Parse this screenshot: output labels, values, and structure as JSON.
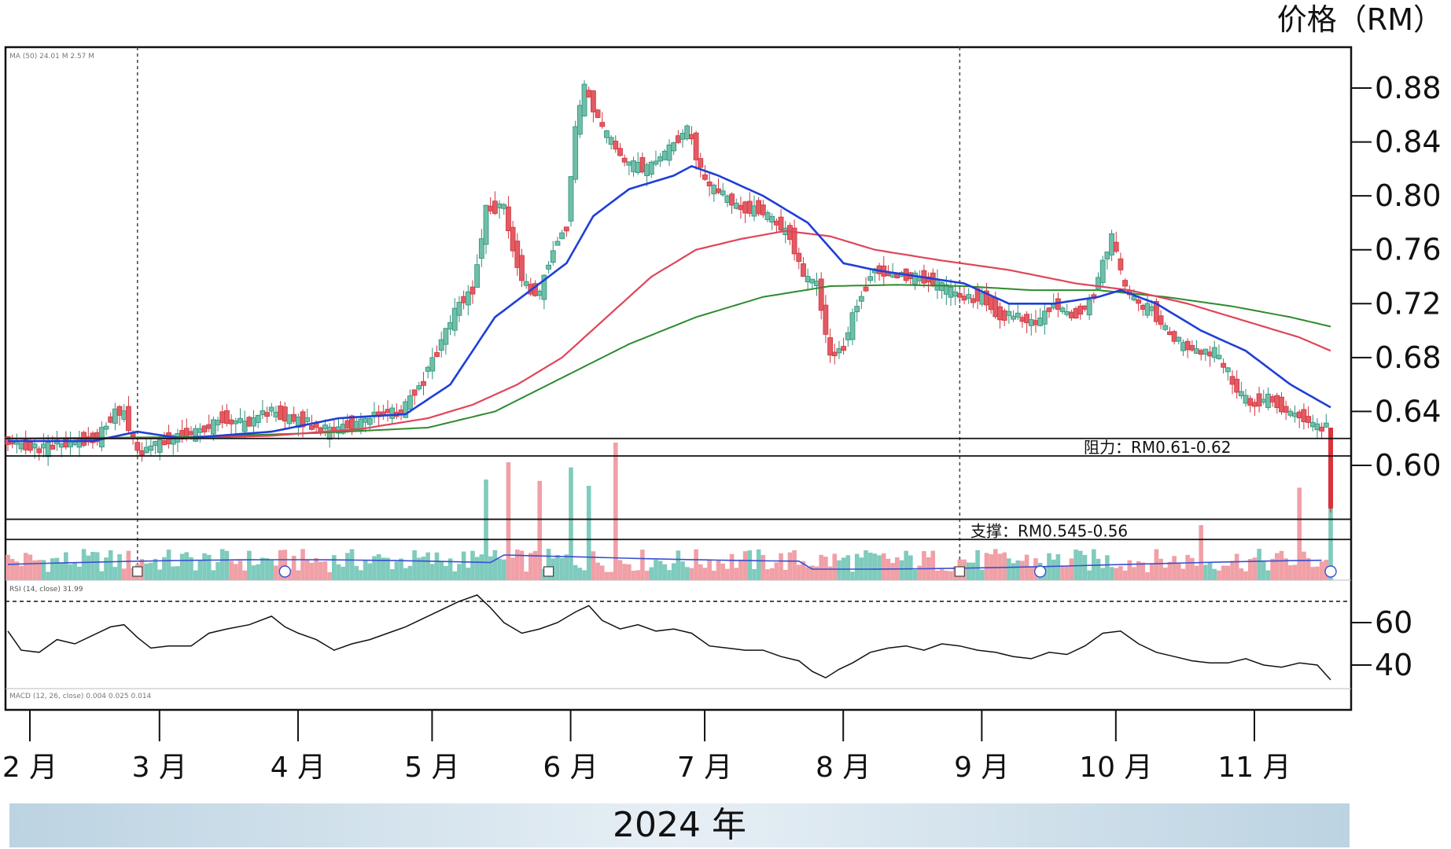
{
  "unit_label": "价格（RM）",
  "chart_data": {
    "type": "candlestick",
    "ylim": [
      0.53,
      0.91
    ],
    "y_ticks": [
      {
        "value": 0.88,
        "label": "0.88"
      },
      {
        "value": 0.84,
        "label": "0.84"
      },
      {
        "value": 0.8,
        "label": "0.80"
      },
      {
        "value": 0.76,
        "label": "0.76"
      },
      {
        "value": 0.72,
        "label": "0.72"
      },
      {
        "value": 0.68,
        "label": "0.68"
      },
      {
        "value": 0.64,
        "label": "0.64"
      },
      {
        "value": 0.6,
        "label": "0.60"
      }
    ],
    "rsi_ticks": [
      {
        "value": 60,
        "label": "60"
      },
      {
        "value": 40,
        "label": "40"
      }
    ],
    "months": [
      {
        "label": "2 月",
        "day": 1
      },
      {
        "label": "3 月",
        "day": 30
      },
      {
        "label": "4 月",
        "day": 61
      },
      {
        "label": "5 月",
        "day": 91
      },
      {
        "label": "6 月",
        "day": 122
      },
      {
        "label": "7 月",
        "day": 152
      },
      {
        "label": "8 月",
        "day": 183
      },
      {
        "label": "9 月",
        "day": 214
      },
      {
        "label": "10 月",
        "day": 244
      },
      {
        "label": "11 月",
        "day": 275
      }
    ],
    "year_label": "2024 年",
    "resistance": {
      "label": "阻力：RM0.61-0.62",
      "low": 0.607,
      "high": 0.62
    },
    "support": {
      "label": "支撑：RM0.545-0.56",
      "low": 0.545,
      "high": 0.56
    },
    "ma_legend": "MA (50)  24.01 M  2.57 M",
    "rsi_legend": "RSI (14, close)  31.99",
    "macd_legend": "MACD (12, 26, close)  0.004  0.025  0.014",
    "rsi_overbought": 70,
    "price_keypoints": [
      [
        1,
        0.618
      ],
      [
        8,
        0.612
      ],
      [
        15,
        0.616
      ],
      [
        22,
        0.62
      ],
      [
        26,
        0.64
      ],
      [
        28,
        0.638
      ],
      [
        31,
        0.61
      ],
      [
        35,
        0.615
      ],
      [
        40,
        0.622
      ],
      [
        45,
        0.625
      ],
      [
        50,
        0.635
      ],
      [
        55,
        0.63
      ],
      [
        60,
        0.64
      ],
      [
        65,
        0.635
      ],
      [
        70,
        0.63
      ],
      [
        74,
        0.625
      ],
      [
        78,
        0.63
      ],
      [
        82,
        0.632
      ],
      [
        86,
        0.64
      ],
      [
        90,
        0.64
      ],
      [
        92,
        0.65
      ],
      [
        95,
        0.665
      ],
      [
        100,
        0.7
      ],
      [
        103,
        0.72
      ],
      [
        106,
        0.73
      ],
      [
        109,
        0.79
      ],
      [
        113,
        0.79
      ],
      [
        115,
        0.76
      ],
      [
        118,
        0.73
      ],
      [
        121,
        0.728
      ],
      [
        124,
        0.76
      ],
      [
        127,
        0.78
      ],
      [
        129,
        0.85
      ],
      [
        131,
        0.88
      ],
      [
        135,
        0.85
      ],
      [
        140,
        0.825
      ],
      [
        145,
        0.82
      ],
      [
        150,
        0.835
      ],
      [
        154,
        0.85
      ],
      [
        158,
        0.81
      ],
      [
        162,
        0.8
      ],
      [
        166,
        0.79
      ],
      [
        170,
        0.79
      ],
      [
        174,
        0.78
      ],
      [
        177,
        0.77
      ],
      [
        180,
        0.74
      ],
      [
        183,
        0.735
      ],
      [
        186,
        0.68
      ],
      [
        189,
        0.69
      ],
      [
        192,
        0.72
      ],
      [
        196,
        0.745
      ],
      [
        200,
        0.74
      ],
      [
        205,
        0.74
      ],
      [
        210,
        0.735
      ],
      [
        215,
        0.725
      ],
      [
        220,
        0.725
      ],
      [
        224,
        0.71
      ],
      [
        228,
        0.71
      ],
      [
        232,
        0.705
      ],
      [
        236,
        0.72
      ],
      [
        240,
        0.71
      ],
      [
        244,
        0.72
      ],
      [
        247,
        0.75
      ],
      [
        249,
        0.77
      ],
      [
        252,
        0.73
      ],
      [
        255,
        0.72
      ],
      [
        258,
        0.715
      ],
      [
        261,
        0.7
      ],
      [
        264,
        0.69
      ],
      [
        268,
        0.685
      ],
      [
        272,
        0.685
      ],
      [
        276,
        0.66
      ],
      [
        280,
        0.645
      ],
      [
        284,
        0.65
      ],
      [
        288,
        0.64
      ],
      [
        292,
        0.635
      ],
      [
        294,
        0.63
      ],
      [
        296,
        0.628
      ]
    ],
    "final_candle": {
      "day": 297,
      "open": 0.628,
      "high": 0.628,
      "low": 0.565,
      "close": 0.568
    },
    "ma_short": [
      [
        1,
        0.618
      ],
      [
        20,
        0.618
      ],
      [
        30,
        0.625
      ],
      [
        40,
        0.62
      ],
      [
        60,
        0.625
      ],
      [
        75,
        0.635
      ],
      [
        90,
        0.638
      ],
      [
        100,
        0.66
      ],
      [
        110,
        0.71
      ],
      [
        118,
        0.73
      ],
      [
        126,
        0.75
      ],
      [
        132,
        0.785
      ],
      [
        140,
        0.805
      ],
      [
        150,
        0.815
      ],
      [
        154,
        0.822
      ],
      [
        160,
        0.815
      ],
      [
        170,
        0.8
      ],
      [
        180,
        0.78
      ],
      [
        188,
        0.75
      ],
      [
        195,
        0.745
      ],
      [
        205,
        0.74
      ],
      [
        215,
        0.735
      ],
      [
        225,
        0.72
      ],
      [
        235,
        0.72
      ],
      [
        245,
        0.725
      ],
      [
        250,
        0.73
      ],
      [
        258,
        0.72
      ],
      [
        268,
        0.7
      ],
      [
        278,
        0.685
      ],
      [
        288,
        0.66
      ],
      [
        297,
        0.643
      ]
    ],
    "ma_mid": [
      [
        1,
        0.62
      ],
      [
        20,
        0.62
      ],
      [
        40,
        0.62
      ],
      [
        60,
        0.622
      ],
      [
        80,
        0.627
      ],
      [
        95,
        0.635
      ],
      [
        105,
        0.645
      ],
      [
        115,
        0.66
      ],
      [
        125,
        0.68
      ],
      [
        135,
        0.71
      ],
      [
        145,
        0.74
      ],
      [
        155,
        0.76
      ],
      [
        165,
        0.768
      ],
      [
        175,
        0.774
      ],
      [
        185,
        0.77
      ],
      [
        195,
        0.76
      ],
      [
        210,
        0.752
      ],
      [
        225,
        0.745
      ],
      [
        240,
        0.735
      ],
      [
        252,
        0.73
      ],
      [
        265,
        0.72
      ],
      [
        280,
        0.705
      ],
      [
        290,
        0.695
      ],
      [
        297,
        0.685
      ]
    ],
    "ma_long": [
      [
        1,
        0.62
      ],
      [
        40,
        0.621
      ],
      [
        70,
        0.624
      ],
      [
        95,
        0.628
      ],
      [
        110,
        0.64
      ],
      [
        125,
        0.665
      ],
      [
        140,
        0.69
      ],
      [
        155,
        0.71
      ],
      [
        170,
        0.725
      ],
      [
        185,
        0.733
      ],
      [
        200,
        0.734
      ],
      [
        215,
        0.733
      ],
      [
        230,
        0.73
      ],
      [
        245,
        0.73
      ],
      [
        260,
        0.725
      ],
      [
        275,
        0.718
      ],
      [
        288,
        0.71
      ],
      [
        297,
        0.703
      ]
    ],
    "rsi_series": [
      [
        1,
        56
      ],
      [
        4,
        47
      ],
      [
        8,
        46
      ],
      [
        12,
        52
      ],
      [
        16,
        50
      ],
      [
        20,
        54
      ],
      [
        24,
        58
      ],
      [
        27,
        59
      ],
      [
        30,
        53
      ],
      [
        33,
        48
      ],
      [
        37,
        49
      ],
      [
        42,
        49
      ],
      [
        46,
        55
      ],
      [
        50,
        57
      ],
      [
        55,
        59
      ],
      [
        60,
        63
      ],
      [
        63,
        58
      ],
      [
        66,
        55
      ],
      [
        70,
        52
      ],
      [
        74,
        47
      ],
      [
        78,
        50
      ],
      [
        82,
        52
      ],
      [
        86,
        55
      ],
      [
        90,
        58
      ],
      [
        94,
        62
      ],
      [
        98,
        66
      ],
      [
        102,
        70
      ],
      [
        106,
        73
      ],
      [
        109,
        67
      ],
      [
        112,
        60
      ],
      [
        116,
        55
      ],
      [
        120,
        57
      ],
      [
        124,
        60
      ],
      [
        128,
        65
      ],
      [
        131,
        68
      ],
      [
        134,
        61
      ],
      [
        138,
        57
      ],
      [
        142,
        59
      ],
      [
        146,
        56
      ],
      [
        150,
        57
      ],
      [
        154,
        55
      ],
      [
        158,
        49
      ],
      [
        162,
        48
      ],
      [
        166,
        47
      ],
      [
        170,
        47
      ],
      [
        174,
        44
      ],
      [
        178,
        42
      ],
      [
        181,
        37
      ],
      [
        184,
        34
      ],
      [
        187,
        38
      ],
      [
        190,
        41
      ],
      [
        194,
        46
      ],
      [
        198,
        48
      ],
      [
        202,
        49
      ],
      [
        206,
        47
      ],
      [
        210,
        50
      ],
      [
        214,
        49
      ],
      [
        218,
        47
      ],
      [
        222,
        46
      ],
      [
        226,
        44
      ],
      [
        230,
        43
      ],
      [
        234,
        46
      ],
      [
        238,
        45
      ],
      [
        242,
        49
      ],
      [
        246,
        55
      ],
      [
        250,
        56
      ],
      [
        254,
        50
      ],
      [
        258,
        46
      ],
      [
        262,
        44
      ],
      [
        266,
        42
      ],
      [
        270,
        41
      ],
      [
        274,
        41
      ],
      [
        278,
        43
      ],
      [
        282,
        40
      ],
      [
        286,
        39
      ],
      [
        290,
        41
      ],
      [
        294,
        40
      ],
      [
        297,
        33
      ]
    ]
  }
}
